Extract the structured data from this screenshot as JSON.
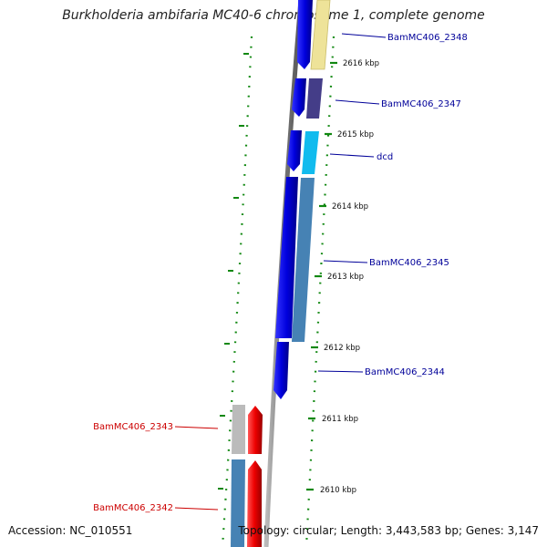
{
  "title": "Burkholderia ambifaria MC40-6 chromosome 1, complete genome",
  "footer": {
    "accession": "Accession: NC_010551",
    "summary": "Topology: circular; Length: 3,443,583 bp; Genes: 3,147"
  },
  "scale": {
    "tick_labels": [
      "2616 kbp",
      "2615 kbp",
      "2614 kbp",
      "2613 kbp",
      "2612 kbp",
      "2611 kbp",
      "2610 kbp"
    ]
  },
  "genes": {
    "forward": [
      {
        "label": "BamMC406_2348",
        "color": "#0000ee"
      },
      {
        "label": "BamMC406_2347",
        "color": "#0000ee"
      },
      {
        "label": "dcd",
        "color": "#0000ee"
      },
      {
        "label": "BamMC406_2345",
        "color": "#0000ee"
      },
      {
        "label": "BamMC406_2344",
        "color": "#0000ee"
      }
    ],
    "reverse": [
      {
        "label": "BamMC406_2343",
        "color": "#ee0000"
      },
      {
        "label": "BamMC406_2342",
        "color": "#ee0000"
      }
    ]
  },
  "colors": {
    "forward_label": "#000099",
    "reverse_label": "#cc0000",
    "backbone": "#888888",
    "gc_ticks": "#118811",
    "cds_yellow": "#eee399",
    "cds_purple": "#443d88",
    "cds_cyan": "#11bbee",
    "cds_steelblue": "#4682b4",
    "cds_gray": "#bbbbbb"
  }
}
